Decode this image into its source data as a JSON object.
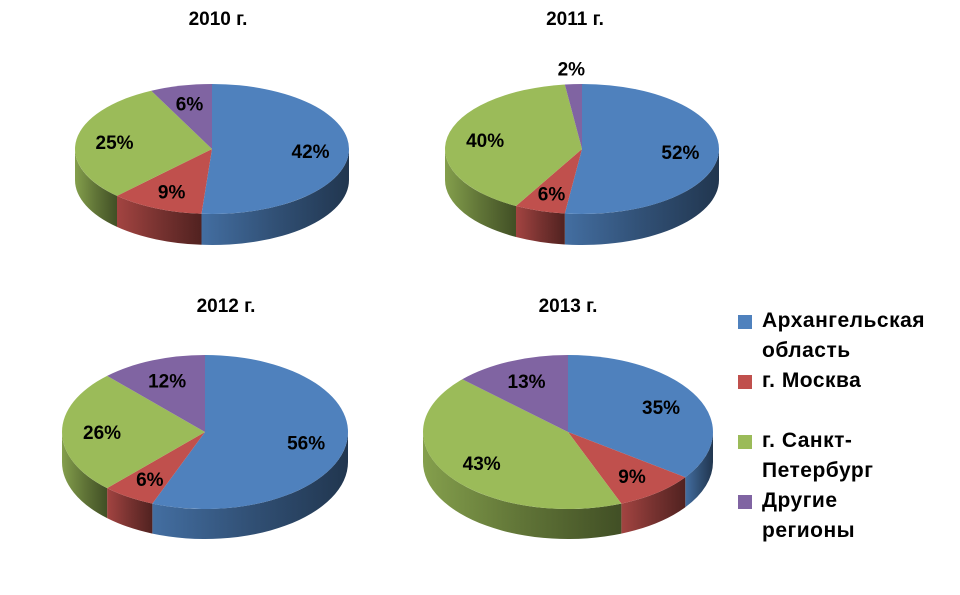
{
  "chart_data": {
    "type": "pie",
    "series_names": [
      "Архангельская область",
      "г. Москва",
      "г. Санкт-Петербург",
      "Другие регионы"
    ],
    "colors": [
      "#4F81BD",
      "#C0504D",
      "#9BBB59",
      "#8064A2"
    ],
    "charts": [
      {
        "title": "2010 г.",
        "values": [
          42,
          9,
          25,
          6
        ],
        "labels": [
          "42%",
          "9%",
          "25%",
          "6%"
        ]
      },
      {
        "title": "2011 г.",
        "values": [
          52,
          6,
          40,
          2
        ],
        "labels": [
          "52%",
          "6%",
          "40%",
          "2%"
        ]
      },
      {
        "title": "2012 г.",
        "values": [
          56,
          6,
          26,
          12
        ],
        "labels": [
          "56%",
          "6%",
          "26%",
          "12%"
        ]
      },
      {
        "title": "2013 г.",
        "values": [
          35,
          9,
          43,
          13
        ],
        "labels": [
          "35%",
          "9%",
          "43%",
          "13%"
        ]
      }
    ],
    "legend": {
      "position": "right",
      "items": [
        {
          "lines": [
            "Архангельская",
            "область"
          ],
          "color": "#4F81BD"
        },
        {
          "lines": [
            "г. Москва"
          ],
          "color": "#C0504D"
        },
        {
          "lines": [
            "г. Санкт-",
            "Петербург"
          ],
          "color": "#9BBB59"
        },
        {
          "lines": [
            "Другие",
            "регионы"
          ],
          "color": "#8064A2"
        }
      ]
    }
  }
}
